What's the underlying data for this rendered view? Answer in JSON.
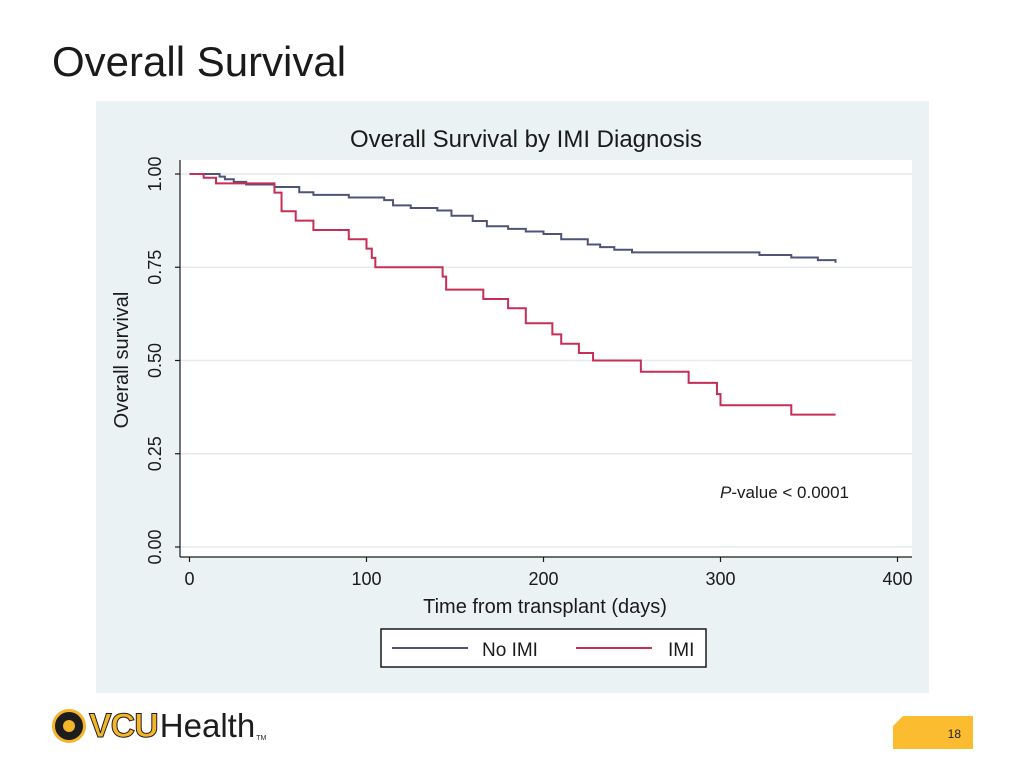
{
  "slide": {
    "title": "Overall Survival",
    "page_number": "18",
    "logo": {
      "vcu": "VCU",
      "health": "Health",
      "tm": "TM"
    }
  },
  "colors": {
    "panel_bg": "#eaf2f3",
    "plot_bg": "#ffffff",
    "no_imi": "#4f5379",
    "imi": "#c62e56",
    "brand_gold": "#fbbd2f"
  },
  "annotation": {
    "p_italic": "P",
    "p_rest": "-value < 0.0001"
  },
  "chart_data": {
    "type": "line",
    "step": true,
    "title": "Overall Survival by IMI Diagnosis",
    "xlabel": "Time from transplant (days)",
    "ylabel": "Overall survival",
    "xlim": [
      0,
      400
    ],
    "ylim": [
      0,
      1
    ],
    "x_ticks": [
      0,
      100,
      200,
      300,
      400
    ],
    "x_tick_labels": [
      "0",
      "100",
      "200",
      "300",
      "400"
    ],
    "y_ticks": [
      0,
      0.25,
      0.5,
      0.75,
      1.0
    ],
    "y_tick_labels": [
      "0.00",
      "0.25",
      "0.50",
      "0.75",
      "1.00"
    ],
    "grid": "horizontal",
    "legend_position": "bottom",
    "series": [
      {
        "name": "No IMI",
        "x": [
          0,
          17,
          20,
          25,
          32,
          48,
          62,
          70,
          90,
          110,
          115,
          125,
          140,
          148,
          160,
          168,
          180,
          190,
          200,
          210,
          225,
          232,
          240,
          250,
          280,
          322,
          340,
          355,
          365
        ],
        "y": [
          1.0,
          0.993,
          0.986,
          0.979,
          0.972,
          0.965,
          0.951,
          0.944,
          0.937,
          0.93,
          0.916,
          0.909,
          0.902,
          0.888,
          0.874,
          0.86,
          0.853,
          0.846,
          0.839,
          0.825,
          0.811,
          0.804,
          0.797,
          0.79,
          0.79,
          0.783,
          0.776,
          0.769,
          0.762
        ]
      },
      {
        "name": "IMI",
        "x": [
          0,
          8,
          15,
          48,
          52,
          60,
          70,
          78,
          90,
          100,
          103,
          105,
          143,
          145,
          166,
          180,
          190,
          196,
          205,
          210,
          220,
          228,
          252,
          255,
          282,
          298,
          300,
          340,
          365
        ],
        "y": [
          1.0,
          0.99,
          0.975,
          0.95,
          0.9,
          0.875,
          0.85,
          0.85,
          0.825,
          0.8,
          0.775,
          0.75,
          0.725,
          0.69,
          0.665,
          0.64,
          0.6,
          0.6,
          0.57,
          0.545,
          0.52,
          0.5,
          0.5,
          0.47,
          0.44,
          0.41,
          0.38,
          0.355,
          0.355
        ]
      }
    ]
  }
}
